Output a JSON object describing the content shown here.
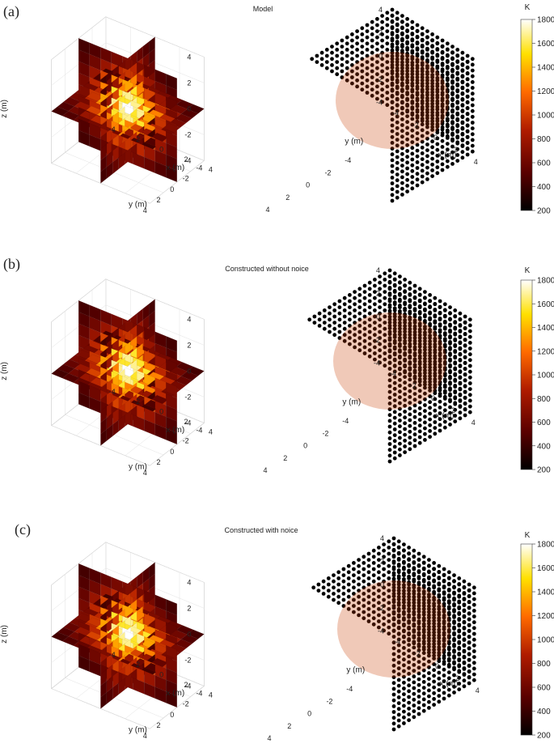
{
  "colormap": [
    "#000000",
    "#5a0000",
    "#b01c00",
    "#ff6a00",
    "#ffe000",
    "#ffffff"
  ],
  "dot_color": "#000000",
  "panels": [
    {
      "letter": "(a)",
      "title": "Model",
      "x_label": "x (m)",
      "y_label": "y (m)",
      "z_label": "z (m)",
      "axis_ticks": [
        -4,
        -2,
        0,
        2,
        4
      ],
      "colorbar": {
        "unit": "K",
        "ticks": [
          200,
          400,
          600,
          800,
          1000,
          1200,
          1400,
          1600,
          1800
        ]
      }
    },
    {
      "letter": "(b)",
      "title": "Constructed without noice",
      "x_label": "x (m)",
      "y_label": "y (m)",
      "z_label": "z (m)",
      "axis_ticks": [
        -4,
        -2,
        0,
        2,
        4
      ],
      "colorbar": {
        "unit": "K",
        "ticks": [
          200,
          400,
          600,
          800,
          1000,
          1200,
          1400,
          1600,
          1800
        ]
      }
    },
    {
      "letter": "(c)",
      "title": "Constructed with noice",
      "x_label": "x (m)",
      "y_label": "y (m)",
      "z_label": "z (m)",
      "axis_ticks": [
        -4,
        -2,
        0,
        2,
        4
      ],
      "colorbar": {
        "unit": "K",
        "ticks": [
          200,
          400,
          600,
          800,
          1000,
          1200,
          1400,
          1600,
          1800
        ]
      }
    }
  ],
  "chart_data": [
    {
      "type": "heatmap",
      "panel": "(a)",
      "view": "orthogonal slices",
      "x_range": [
        -4,
        4
      ],
      "y_range": [
        -4,
        4
      ],
      "z_range": [
        -4,
        4
      ],
      "color_range": [
        200,
        1800
      ],
      "peak_value": 1800,
      "peak_location": [
        0,
        0,
        0
      ]
    },
    {
      "type": "scatter",
      "panel": "(a)",
      "view": "point grid",
      "x_range": [
        -4,
        4
      ],
      "y_range": [
        -4,
        4
      ],
      "z_range": [
        -4,
        4
      ],
      "color_range": [
        200,
        1800
      ]
    },
    {
      "type": "heatmap",
      "panel": "(b)",
      "view": "orthogonal slices",
      "x_range": [
        -4,
        4
      ],
      "y_range": [
        -4,
        4
      ],
      "z_range": [
        -4,
        4
      ],
      "color_range": [
        200,
        1800
      ],
      "peak_value": 1800,
      "peak_location": [
        0,
        0,
        0
      ]
    },
    {
      "type": "scatter",
      "panel": "(b)",
      "view": "point grid",
      "x_range": [
        -4,
        4
      ],
      "y_range": [
        -4,
        4
      ],
      "z_range": [
        -4,
        4
      ],
      "color_range": [
        200,
        1800
      ]
    },
    {
      "type": "heatmap",
      "panel": "(c)",
      "view": "orthogonal slices",
      "x_range": [
        -4,
        4
      ],
      "y_range": [
        -4,
        4
      ],
      "z_range": [
        -4,
        4
      ],
      "color_range": [
        200,
        1800
      ],
      "peak_value": 1800,
      "peak_location": [
        0,
        0,
        0
      ]
    },
    {
      "type": "scatter",
      "panel": "(c)",
      "view": "point grid",
      "x_range": [
        -4,
        4
      ],
      "y_range": [
        -4,
        4
      ],
      "z_range": [
        -4,
        4
      ],
      "color_range": [
        200,
        1800
      ]
    }
  ]
}
